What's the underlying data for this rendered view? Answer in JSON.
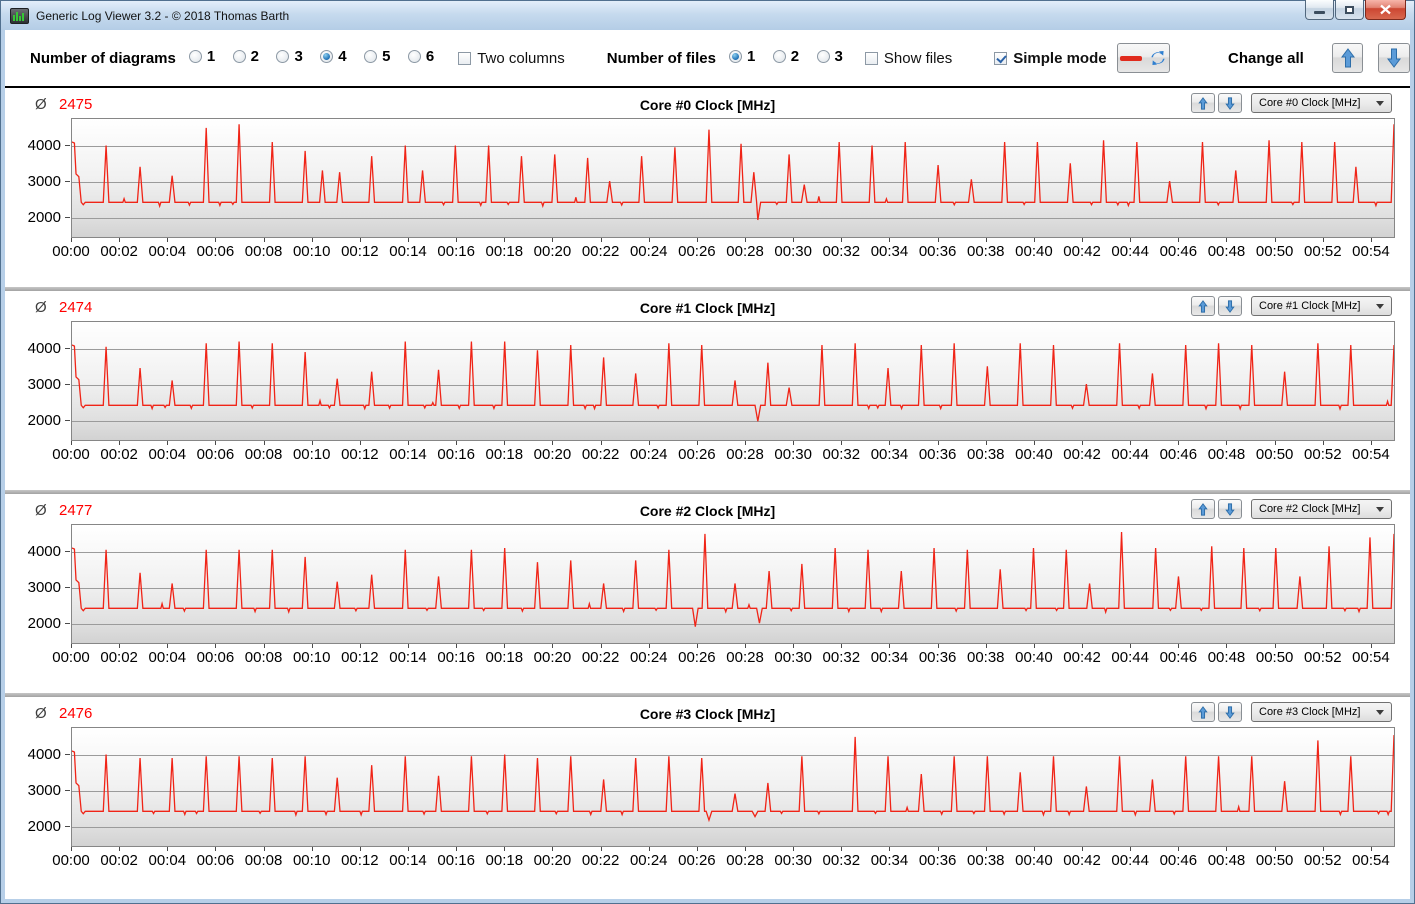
{
  "window": {
    "title": "Generic Log Viewer 3.2 - © 2018 Thomas Barth",
    "icon": "equalizer-screen-icon"
  },
  "toolbar": {
    "diagrams_label": "Number of diagrams",
    "diagram_options": [
      "1",
      "2",
      "3",
      "4",
      "5",
      "6"
    ],
    "diagrams_selected": "4",
    "two_columns_label": "Two columns",
    "two_columns_checked": false,
    "files_label": "Number of files",
    "file_options": [
      "1",
      "2",
      "3"
    ],
    "files_selected": "1",
    "show_files_label": "Show files",
    "show_files_checked": false,
    "simple_mode_label": "Simple mode",
    "simple_mode_checked": true,
    "legend_button_icons": [
      "red-line-swatch",
      "refresh-icon"
    ],
    "change_all_label": "Change all",
    "change_all_buttons": [
      "up-arrow-icon",
      "down-arrow-icon"
    ]
  },
  "panel_ui": {
    "avg_symbol": "Ø"
  },
  "colors": {
    "line_red": "#f02417",
    "avg_red": "#ff0000",
    "arrow_blue": "#5b9bd8",
    "titlebar_blue": "#c6daee",
    "separator_gray": "#ababab"
  },
  "axes": {
    "x_ticks": [
      "00:00",
      "00:02",
      "00:04",
      "00:06",
      "00:08",
      "00:10",
      "00:12",
      "00:14",
      "00:16",
      "00:18",
      "00:20",
      "00:22",
      "00:24",
      "00:26",
      "00:28",
      "00:30",
      "00:32",
      "00:34",
      "00:36",
      "00:38",
      "00:40",
      "00:42",
      "00:44",
      "00:46",
      "00:48",
      "00:50",
      "00:52",
      "00:54"
    ],
    "x_tick_seconds": [
      0,
      120,
      240,
      360,
      480,
      600,
      720,
      840,
      960,
      1080,
      1200,
      1320,
      1440,
      1560,
      1680,
      1800,
      1920,
      2040,
      2160,
      2280,
      2400,
      2520,
      2640,
      2760,
      2880,
      3000,
      3120,
      3240
    ],
    "y_ticks": [
      "4000",
      "3000",
      "2000"
    ],
    "y_tick_values": [
      4000,
      3000,
      2000
    ],
    "x_range_seconds": [
      0,
      3300
    ],
    "y_render_range": [
      1420,
      4750
    ],
    "grid": true
  },
  "chart_data": [
    {
      "type": "line",
      "title": "Core #0 Clock [MHz]",
      "selector_value": "Core #0 Clock [MHz]",
      "average": "2475",
      "unit": "MHz",
      "baseline": 2400,
      "start_value": 4100,
      "spikes": [
        [
          85,
          4000
        ],
        [
          170,
          3400
        ],
        [
          250,
          3150
        ],
        [
          335,
          4500
        ],
        [
          417,
          4600
        ],
        [
          500,
          4100
        ],
        [
          582,
          3850
        ],
        [
          625,
          3300
        ],
        [
          668,
          3250
        ],
        [
          748,
          3700
        ],
        [
          832,
          4000
        ],
        [
          875,
          3300
        ],
        [
          957,
          4000
        ],
        [
          1040,
          4000
        ],
        [
          1122,
          3700
        ],
        [
          1205,
          3750
        ],
        [
          1287,
          3650
        ],
        [
          1342,
          3000
        ],
        [
          1422,
          3700
        ],
        [
          1505,
          3950
        ],
        [
          1590,
          4450
        ],
        [
          1670,
          4050
        ],
        [
          1702,
          3250
        ],
        [
          1790,
          3750
        ],
        [
          1828,
          2900
        ],
        [
          1915,
          4100
        ],
        [
          1997,
          4000
        ],
        [
          2080,
          4100
        ],
        [
          2162,
          3450
        ],
        [
          2245,
          3050
        ],
        [
          2328,
          4100
        ],
        [
          2410,
          4100
        ],
        [
          2492,
          3500
        ],
        [
          2575,
          4150
        ],
        [
          2658,
          4100
        ],
        [
          2740,
          3000
        ],
        [
          2822,
          4100
        ],
        [
          2905,
          3300
        ],
        [
          2988,
          4150
        ],
        [
          3070,
          4100
        ],
        [
          3152,
          4100
        ],
        [
          3205,
          3400
        ],
        [
          3300,
          4600
        ]
      ],
      "dips": [
        [
          1712,
          1900
        ]
      ]
    },
    {
      "type": "line",
      "title": "Core #1 Clock [MHz]",
      "selector_value": "Core #1 Clock [MHz]",
      "average": "2474",
      "unit": "MHz",
      "baseline": 2400,
      "start_value": 4100,
      "spikes": [
        [
          85,
          4050
        ],
        [
          170,
          3450
        ],
        [
          250,
          3100
        ],
        [
          335,
          4150
        ],
        [
          417,
          4200
        ],
        [
          500,
          4150
        ],
        [
          582,
          3900
        ],
        [
          662,
          3150
        ],
        [
          748,
          3350
        ],
        [
          832,
          4200
        ],
        [
          915,
          3400
        ],
        [
          997,
          4200
        ],
        [
          1080,
          4200
        ],
        [
          1162,
          3950
        ],
        [
          1245,
          4100
        ],
        [
          1327,
          3750
        ],
        [
          1407,
          3300
        ],
        [
          1490,
          4150
        ],
        [
          1572,
          4100
        ],
        [
          1655,
          3100
        ],
        [
          1737,
          3600
        ],
        [
          1790,
          2900
        ],
        [
          1872,
          4100
        ],
        [
          1955,
          4150
        ],
        [
          2037,
          3450
        ],
        [
          2120,
          4100
        ],
        [
          2202,
          4150
        ],
        [
          2285,
          3500
        ],
        [
          2367,
          4150
        ],
        [
          2450,
          4100
        ],
        [
          2532,
          3000
        ],
        [
          2615,
          4150
        ],
        [
          2697,
          3300
        ],
        [
          2780,
          4100
        ],
        [
          2862,
          4150
        ],
        [
          2945,
          4100
        ],
        [
          3027,
          3350
        ],
        [
          3110,
          4150
        ],
        [
          3192,
          4100
        ],
        [
          3300,
          4100
        ]
      ],
      "dips": [
        [
          1712,
          1950
        ]
      ]
    },
    {
      "type": "line",
      "title": "Core #2 Clock [MHz]",
      "selector_value": "Core #2 Clock [MHz]",
      "average": "2477",
      "unit": "MHz",
      "baseline": 2400,
      "start_value": 4100,
      "spikes": [
        [
          85,
          4050
        ],
        [
          170,
          3400
        ],
        [
          250,
          3100
        ],
        [
          335,
          4050
        ],
        [
          417,
          4050
        ],
        [
          500,
          4050
        ],
        [
          582,
          3850
        ],
        [
          662,
          3150
        ],
        [
          748,
          3350
        ],
        [
          832,
          4050
        ],
        [
          915,
          3300
        ],
        [
          997,
          4050
        ],
        [
          1080,
          4100
        ],
        [
          1162,
          3700
        ],
        [
          1245,
          3750
        ],
        [
          1327,
          3100
        ],
        [
          1407,
          3750
        ],
        [
          1490,
          4050
        ],
        [
          1580,
          4500
        ],
        [
          1655,
          3100
        ],
        [
          1740,
          3450
        ],
        [
          1822,
          3650
        ],
        [
          1905,
          4100
        ],
        [
          1987,
          4050
        ],
        [
          2070,
          3450
        ],
        [
          2152,
          4100
        ],
        [
          2235,
          4050
        ],
        [
          2317,
          3500
        ],
        [
          2400,
          4100
        ],
        [
          2482,
          4050
        ],
        [
          2540,
          3100
        ],
        [
          2620,
          4550
        ],
        [
          2705,
          4100
        ],
        [
          2762,
          3300
        ],
        [
          2845,
          4150
        ],
        [
          2925,
          4100
        ],
        [
          3005,
          4100
        ],
        [
          3065,
          3300
        ],
        [
          3138,
          4150
        ],
        [
          3240,
          4400
        ],
        [
          3300,
          4500
        ]
      ],
      "dips": [
        [
          1556,
          1880
        ],
        [
          1716,
          1980
        ]
      ]
    },
    {
      "type": "line",
      "title": "Core #3 Clock [MHz]",
      "selector_value": "Core #3 Clock [MHz]",
      "average": "2476",
      "unit": "MHz",
      "baseline": 2400,
      "start_value": 4100,
      "spikes": [
        [
          85,
          4000
        ],
        [
          170,
          3900
        ],
        [
          250,
          3900
        ],
        [
          335,
          3950
        ],
        [
          417,
          3950
        ],
        [
          500,
          3900
        ],
        [
          582,
          3950
        ],
        [
          662,
          3350
        ],
        [
          748,
          3700
        ],
        [
          832,
          3950
        ],
        [
          915,
          3400
        ],
        [
          997,
          3950
        ],
        [
          1080,
          4000
        ],
        [
          1162,
          3900
        ],
        [
          1245,
          3950
        ],
        [
          1327,
          3300
        ],
        [
          1407,
          3900
        ],
        [
          1490,
          3950
        ],
        [
          1572,
          3900
        ],
        [
          1655,
          2900
        ],
        [
          1737,
          3200
        ],
        [
          1822,
          3950
        ],
        [
          1955,
          4500
        ],
        [
          2037,
          3950
        ],
        [
          2120,
          3450
        ],
        [
          2202,
          3950
        ],
        [
          2285,
          3950
        ],
        [
          2367,
          3500
        ],
        [
          2450,
          3950
        ],
        [
          2532,
          3100
        ],
        [
          2615,
          3950
        ],
        [
          2697,
          3300
        ],
        [
          2780,
          3950
        ],
        [
          2862,
          3950
        ],
        [
          2945,
          3950
        ],
        [
          3027,
          3250
        ],
        [
          3110,
          4400
        ],
        [
          3192,
          3950
        ],
        [
          3300,
          4550
        ]
      ],
      "dips": [
        [
          1590,
          2150
        ],
        [
          1705,
          2250
        ]
      ]
    }
  ]
}
